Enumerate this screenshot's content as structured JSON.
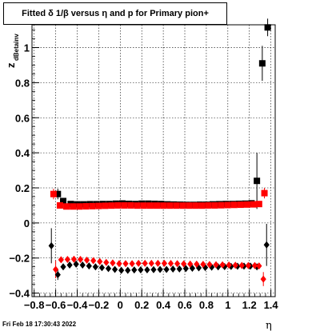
{
  "title": "Fitted δ 1/β versus η and p for Primary pion+",
  "footer": "Fri Feb 18 17:30:43 2022",
  "chart_data": {
    "type": "scatter",
    "title": "Fitted δ 1/β versus η and p for Primary pion+",
    "xlabel": "η",
    "ylabel": "z",
    "ylabel_sub": "dBetainv",
    "xlim": [
      -0.82,
      1.44
    ],
    "ylim": [
      -0.42,
      1.13
    ],
    "grid": true,
    "xticks": [
      -0.8,
      -0.6,
      -0.4,
      -0.2,
      0,
      0.2,
      0.4,
      0.6,
      0.8,
      1,
      1.2,
      1.4
    ],
    "xtick_labels": [
      "−0.8",
      "−0.6",
      "−0.4",
      "−0.2",
      "0",
      "0.2",
      "0.4",
      "0.6",
      "0.8",
      "1",
      "1.2",
      "1.4"
    ],
    "yticks": [
      -0.4,
      -0.2,
      0,
      0.2,
      0.4,
      0.6,
      0.8,
      1
    ],
    "ytick_labels": [
      "−0.4",
      "−0.2",
      "0",
      "0.2",
      "0.4",
      "0.6",
      "0.8",
      "1"
    ],
    "series": [
      {
        "marker": "square",
        "color": "#000000",
        "points": [
          {
            "x": -0.58,
            "y": 0.165,
            "err": 0.03
          },
          {
            "x": -0.53,
            "y": 0.125
          },
          {
            "x": -0.46,
            "y": 0.108
          },
          {
            "x": -0.4,
            "y": 0.106
          },
          {
            "x": -0.34,
            "y": 0.106
          },
          {
            "x": -0.28,
            "y": 0.107
          },
          {
            "x": -0.22,
            "y": 0.107
          },
          {
            "x": -0.16,
            "y": 0.108
          },
          {
            "x": -0.1,
            "y": 0.108
          },
          {
            "x": -0.04,
            "y": 0.11
          },
          {
            "x": 0.02,
            "y": 0.111
          },
          {
            "x": 0.08,
            "y": 0.109
          },
          {
            "x": 0.14,
            "y": 0.108
          },
          {
            "x": 0.2,
            "y": 0.11
          },
          {
            "x": 0.26,
            "y": 0.11
          },
          {
            "x": 0.32,
            "y": 0.109
          },
          {
            "x": 0.38,
            "y": 0.108
          },
          {
            "x": 0.44,
            "y": 0.106
          },
          {
            "x": 0.5,
            "y": 0.105
          },
          {
            "x": 0.56,
            "y": 0.104
          },
          {
            "x": 0.62,
            "y": 0.103
          },
          {
            "x": 0.68,
            "y": 0.103
          },
          {
            "x": 0.74,
            "y": 0.104
          },
          {
            "x": 0.8,
            "y": 0.104
          },
          {
            "x": 0.86,
            "y": 0.106
          },
          {
            "x": 0.92,
            "y": 0.107
          },
          {
            "x": 0.98,
            "y": 0.108
          },
          {
            "x": 1.04,
            "y": 0.108
          },
          {
            "x": 1.1,
            "y": 0.109
          },
          {
            "x": 1.16,
            "y": 0.11
          },
          {
            "x": 1.22,
            "y": 0.112
          },
          {
            "x": 1.27,
            "y": 0.24,
            "err": 0.16
          },
          {
            "x": 1.32,
            "y": 0.91,
            "err": 0.1
          },
          {
            "x": 1.37,
            "y": 1.115,
            "err": 0.05
          }
        ]
      },
      {
        "marker": "square",
        "color": "#ff0000",
        "points": [
          {
            "x": -0.62,
            "y": 0.165,
            "err": 0.03
          },
          {
            "x": -0.56,
            "y": 0.1
          },
          {
            "x": -0.5,
            "y": 0.094
          },
          {
            "x": -0.44,
            "y": 0.094
          },
          {
            "x": -0.38,
            "y": 0.094
          },
          {
            "x": -0.32,
            "y": 0.095
          },
          {
            "x": -0.26,
            "y": 0.096
          },
          {
            "x": -0.2,
            "y": 0.097
          },
          {
            "x": -0.14,
            "y": 0.098
          },
          {
            "x": -0.08,
            "y": 0.099
          },
          {
            "x": -0.02,
            "y": 0.1
          },
          {
            "x": 0.04,
            "y": 0.1
          },
          {
            "x": 0.1,
            "y": 0.1
          },
          {
            "x": 0.16,
            "y": 0.099
          },
          {
            "x": 0.22,
            "y": 0.099
          },
          {
            "x": 0.28,
            "y": 0.099
          },
          {
            "x": 0.34,
            "y": 0.099
          },
          {
            "x": 0.4,
            "y": 0.099
          },
          {
            "x": 0.46,
            "y": 0.099
          },
          {
            "x": 0.52,
            "y": 0.099
          },
          {
            "x": 0.58,
            "y": 0.099
          },
          {
            "x": 0.64,
            "y": 0.099
          },
          {
            "x": 0.7,
            "y": 0.099
          },
          {
            "x": 0.76,
            "y": 0.099
          },
          {
            "x": 0.82,
            "y": 0.1
          },
          {
            "x": 0.88,
            "y": 0.1
          },
          {
            "x": 0.94,
            "y": 0.101
          },
          {
            "x": 1.0,
            "y": 0.102
          },
          {
            "x": 1.06,
            "y": 0.103
          },
          {
            "x": 1.12,
            "y": 0.104
          },
          {
            "x": 1.18,
            "y": 0.105
          },
          {
            "x": 1.24,
            "y": 0.106
          },
          {
            "x": 1.29,
            "y": 0.108
          },
          {
            "x": 1.34,
            "y": 0.17,
            "err": 0.03
          }
        ]
      },
      {
        "marker": "diamond",
        "color": "#000000",
        "points": [
          {
            "x": -0.64,
            "y": -0.13,
            "err": 0.1
          },
          {
            "x": -0.58,
            "y": -0.295,
            "err": 0.03
          },
          {
            "x": -0.53,
            "y": -0.25
          },
          {
            "x": -0.47,
            "y": -0.24
          },
          {
            "x": -0.41,
            "y": -0.235
          },
          {
            "x": -0.35,
            "y": -0.24
          },
          {
            "x": -0.29,
            "y": -0.245
          },
          {
            "x": -0.23,
            "y": -0.25
          },
          {
            "x": -0.17,
            "y": -0.255
          },
          {
            "x": -0.11,
            "y": -0.26
          },
          {
            "x": -0.05,
            "y": -0.265
          },
          {
            "x": 0.01,
            "y": -0.27
          },
          {
            "x": 0.07,
            "y": -0.27
          },
          {
            "x": 0.13,
            "y": -0.268
          },
          {
            "x": 0.19,
            "y": -0.267
          },
          {
            "x": 0.25,
            "y": -0.267
          },
          {
            "x": 0.31,
            "y": -0.266
          },
          {
            "x": 0.37,
            "y": -0.265
          },
          {
            "x": 0.43,
            "y": -0.265
          },
          {
            "x": 0.49,
            "y": -0.263
          },
          {
            "x": 0.55,
            "y": -0.262
          },
          {
            "x": 0.61,
            "y": -0.26
          },
          {
            "x": 0.67,
            "y": -0.258
          },
          {
            "x": 0.73,
            "y": -0.256
          },
          {
            "x": 0.79,
            "y": -0.254
          },
          {
            "x": 0.85,
            "y": -0.252
          },
          {
            "x": 0.91,
            "y": -0.25
          },
          {
            "x": 0.97,
            "y": -0.249
          },
          {
            "x": 1.03,
            "y": -0.248
          },
          {
            "x": 1.09,
            "y": -0.247
          },
          {
            "x": 1.15,
            "y": -0.246
          },
          {
            "x": 1.21,
            "y": -0.246
          },
          {
            "x": 1.27,
            "y": -0.25
          },
          {
            "x": 1.36,
            "y": -0.125,
            "err": 0.12
          }
        ]
      },
      {
        "marker": "diamond",
        "color": "#ff0000",
        "points": [
          {
            "x": -0.6,
            "y": -0.265,
            "err": 0.05
          },
          {
            "x": -0.55,
            "y": -0.21
          },
          {
            "x": -0.49,
            "y": -0.208
          },
          {
            "x": -0.43,
            "y": -0.207
          },
          {
            "x": -0.37,
            "y": -0.208
          },
          {
            "x": -0.31,
            "y": -0.212
          },
          {
            "x": -0.25,
            "y": -0.215
          },
          {
            "x": -0.19,
            "y": -0.22
          },
          {
            "x": -0.13,
            "y": -0.225
          },
          {
            "x": -0.07,
            "y": -0.228
          },
          {
            "x": -0.01,
            "y": -0.232
          },
          {
            "x": 0.05,
            "y": -0.232
          },
          {
            "x": 0.11,
            "y": -0.232
          },
          {
            "x": 0.17,
            "y": -0.23
          },
          {
            "x": 0.23,
            "y": -0.23
          },
          {
            "x": 0.29,
            "y": -0.23
          },
          {
            "x": 0.35,
            "y": -0.23
          },
          {
            "x": 0.41,
            "y": -0.23
          },
          {
            "x": 0.47,
            "y": -0.231
          },
          {
            "x": 0.53,
            "y": -0.232
          },
          {
            "x": 0.59,
            "y": -0.233
          },
          {
            "x": 0.65,
            "y": -0.234
          },
          {
            "x": 0.71,
            "y": -0.235
          },
          {
            "x": 0.77,
            "y": -0.236
          },
          {
            "x": 0.83,
            "y": -0.237
          },
          {
            "x": 0.89,
            "y": -0.238
          },
          {
            "x": 0.95,
            "y": -0.239
          },
          {
            "x": 1.01,
            "y": -0.24
          },
          {
            "x": 1.07,
            "y": -0.241
          },
          {
            "x": 1.13,
            "y": -0.242
          },
          {
            "x": 1.19,
            "y": -0.243
          },
          {
            "x": 1.25,
            "y": -0.243
          },
          {
            "x": 1.29,
            "y": -0.245
          },
          {
            "x": 1.33,
            "y": -0.32,
            "err": 0.04
          }
        ]
      }
    ]
  }
}
